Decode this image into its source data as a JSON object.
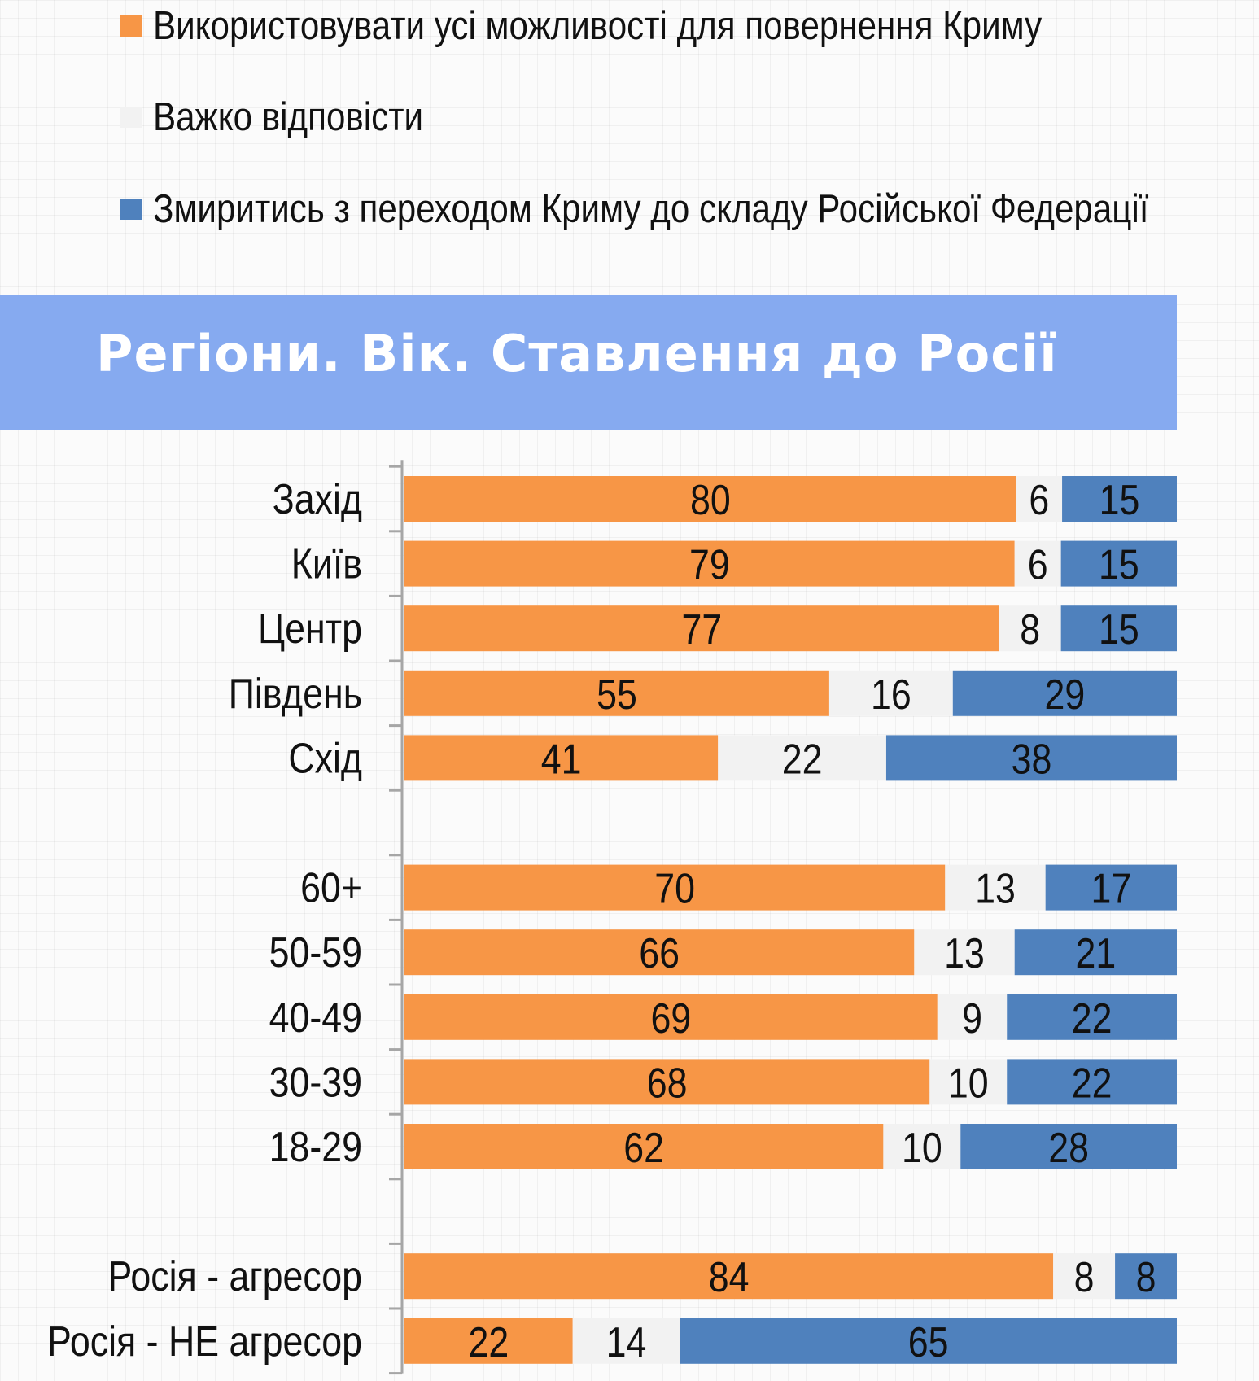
{
  "legend": [
    {
      "label": "Використовувати усі можливості для повернення Криму",
      "color": "#f79646"
    },
    {
      "label": "Важко відповісти",
      "color": "#f2f2f2"
    },
    {
      "label": "Змиритись з переходом Криму до складу Російської Федерації",
      "color": "#4f81bd"
    }
  ],
  "title": "Регіони. Вік. Ставлення до Росії",
  "chart_data": {
    "type": "bar",
    "orientation": "horizontal",
    "stacked": true,
    "categories": [
      "Захід",
      "Київ",
      "Центр",
      "Південь",
      "Схід",
      "",
      "60+",
      "50-59",
      "40-49",
      "30-39",
      "18-29",
      "",
      "Росія - агресор",
      "Росія - НЕ агресор"
    ],
    "series": [
      {
        "name": "Використовувати усі можливості для повернення Криму",
        "color": "#f79646",
        "values": [
          80,
          79,
          77,
          55,
          41,
          null,
          70,
          66,
          69,
          68,
          62,
          null,
          84,
          22
        ]
      },
      {
        "name": "Важко відповісти",
        "color": "#f2f2f2",
        "values": [
          6,
          6,
          8,
          16,
          22,
          null,
          13,
          13,
          9,
          10,
          10,
          null,
          8,
          14
        ]
      },
      {
        "name": "Змиритись з переходом Криму до складу Російської Федерації",
        "color": "#4f81bd",
        "values": [
          15,
          15,
          15,
          29,
          38,
          null,
          17,
          21,
          22,
          22,
          28,
          null,
          8,
          65
        ]
      }
    ],
    "data_labels": true,
    "legend_position": "top",
    "grid": false
  }
}
